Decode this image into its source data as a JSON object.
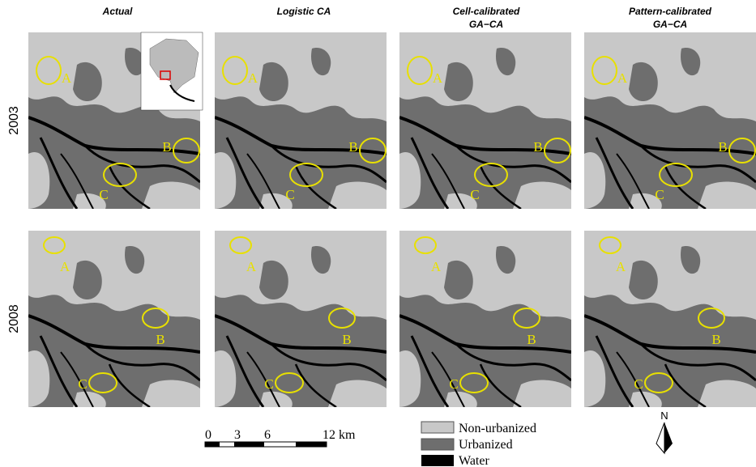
{
  "column_titles": [
    [
      "Actual"
    ],
    [
      "Logistic CA"
    ],
    [
      "Cell-calibrated",
      "GA−CA"
    ],
    [
      "Pattern-calibrated",
      "GA−CA"
    ]
  ],
  "rows": [
    {
      "label": "2003",
      "panels": [
        {
          "marks": [
            "A",
            "B",
            "C"
          ]
        },
        {
          "marks": [
            "A",
            "B",
            "C"
          ]
        },
        {
          "marks": [
            "A",
            "B",
            "C"
          ]
        },
        {
          "marks": [
            "A",
            "B",
            "C"
          ]
        }
      ]
    },
    {
      "label": "2008",
      "panels": [
        {
          "marks": [
            "A",
            "B",
            "C"
          ]
        },
        {
          "marks": [
            "A",
            "B",
            "C"
          ]
        },
        {
          "marks": [
            "A",
            "B",
            "C"
          ]
        },
        {
          "marks": [
            "A",
            "B",
            "C"
          ]
        }
      ]
    }
  ],
  "scale_bar": {
    "ticks": [
      "0",
      "3",
      "6",
      "12 km"
    ]
  },
  "legend": [
    "Non-urbanized",
    "Urbanized",
    "Water"
  ],
  "north": "N"
}
